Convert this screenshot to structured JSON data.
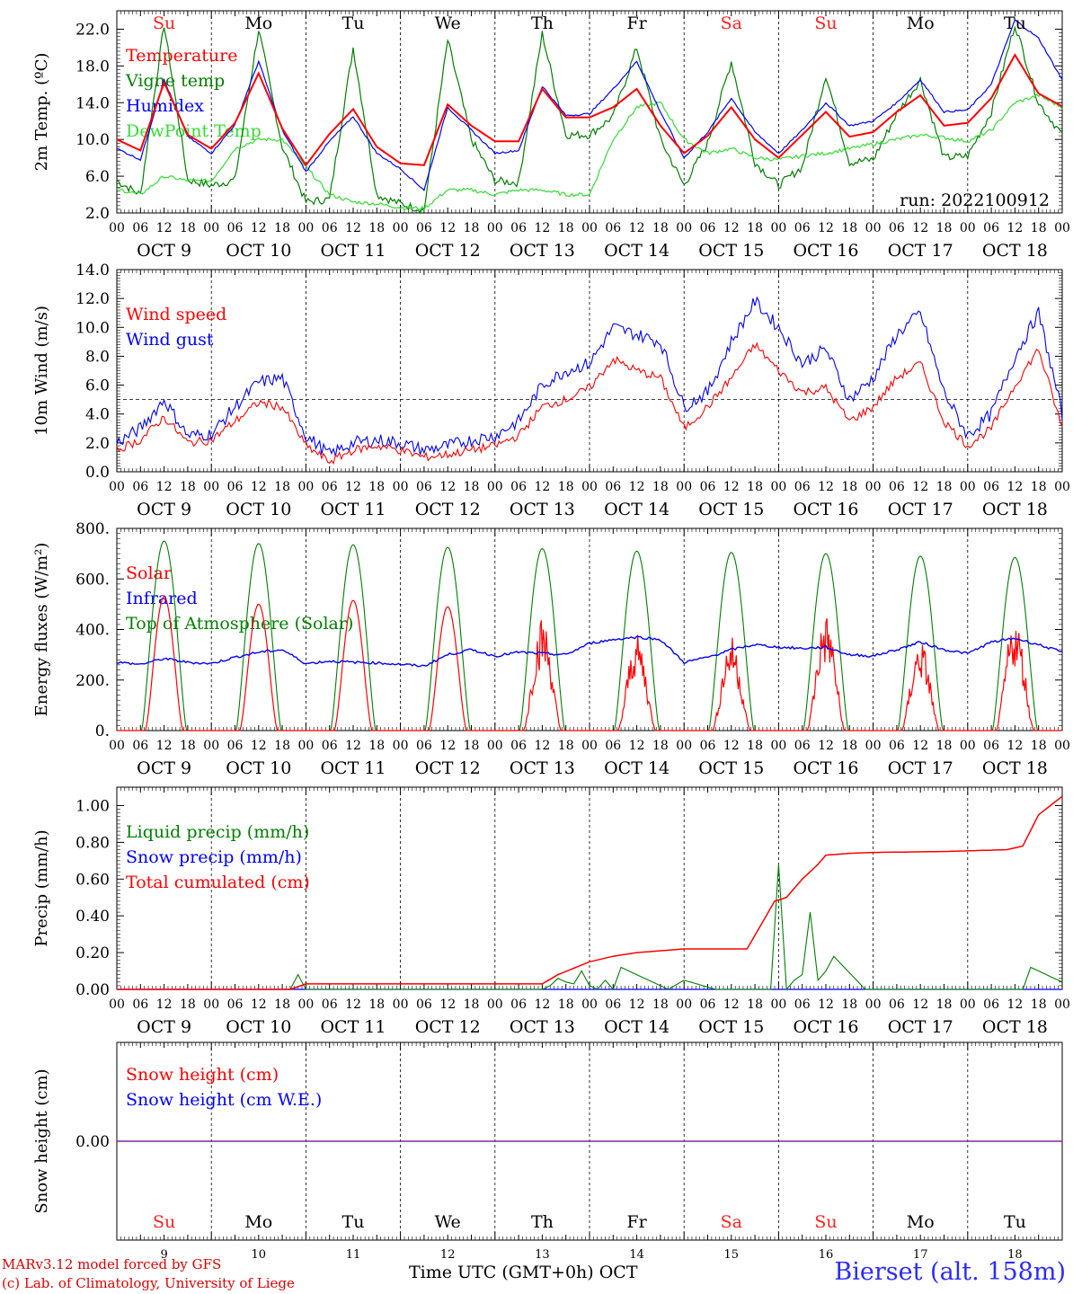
{
  "footer": {
    "credit_line1": "MARv3.12 model forced by GFS",
    "credit_line2": "(c) Lab. of Climatology, University of Liege",
    "x_title": "Time UTC (GMT+0h) OCT",
    "station": "Bierset (alt. 158m)"
  },
  "axis": {
    "hour_ticks": [
      "00",
      "06",
      "12",
      "18"
    ],
    "final_hour": "00",
    "date_labels": [
      "OCT  9",
      "OCT 10",
      "OCT 11",
      "OCT 12",
      "OCT 13",
      "OCT 14",
      "OCT 15",
      "OCT 16",
      "OCT 17",
      "OCT 18"
    ],
    "weekdays": [
      "Su",
      "Mo",
      "Tu",
      "We",
      "Th",
      "Fr",
      "Sa",
      "Su",
      "Mo",
      "Tu"
    ],
    "weekend_color": "#ff2020",
    "weekday_color": "#000000",
    "day_numbers": [
      "9",
      "10",
      "11",
      "12",
      "13",
      "14",
      "15",
      "16",
      "17",
      "18"
    ]
  },
  "chart_data": [
    {
      "type": "line",
      "ylabel": "2m Temp. (ºC)",
      "ylim": [
        2.0,
        24.0
      ],
      "yticks": [
        "2.0",
        "6.0",
        "10.0",
        "14.0",
        "18.0",
        "22.0"
      ],
      "note": "run: 2022100912",
      "x_unit": "hours since OCT 9 00 UTC",
      "series": [
        {
          "name": "Temperature",
          "color": "#ff0000",
          "x": [
            0,
            6,
            12,
            18,
            24,
            30,
            36,
            42,
            48,
            54,
            60,
            66,
            72,
            78,
            84,
            90,
            96,
            102,
            108,
            114,
            120,
            126,
            132,
            138,
            144,
            150,
            156,
            162,
            168,
            174,
            180,
            186,
            192,
            198,
            204,
            210,
            216,
            222,
            228,
            234,
            240
          ],
          "values": [
            10.0,
            8.8,
            16.2,
            10.5,
            9.0,
            11.8,
            17.2,
            11.2,
            7.2,
            10.6,
            13.3,
            9.2,
            7.4,
            7.2,
            13.8,
            11.5,
            9.8,
            9.8,
            15.5,
            12.4,
            12.4,
            13.5,
            15.5,
            11.5,
            8.5,
            10.4,
            13.5,
            10.0,
            8.0,
            10.5,
            13.0,
            10.3,
            10.8,
            13.0,
            14.8,
            11.5,
            11.8,
            14.5,
            19.2,
            15.0,
            13.6
          ]
        },
        {
          "name": "Vigne temp",
          "color": "#008000",
          "x": [
            0,
            6,
            12,
            18,
            24,
            30,
            36,
            42,
            48,
            54,
            60,
            66,
            72,
            78,
            84,
            90,
            96,
            102,
            108,
            114,
            120,
            126,
            132,
            138,
            144,
            150,
            156,
            162,
            168,
            174,
            180,
            186,
            192,
            198,
            204,
            210,
            216,
            222,
            228,
            234,
            240
          ],
          "values": [
            5.5,
            4.0,
            22.5,
            5.6,
            5.0,
            5.6,
            22.0,
            9.2,
            3.2,
            3.5,
            20.0,
            4.0,
            3.0,
            2.3,
            20.8,
            10.0,
            5.5,
            5.3,
            21.5,
            10.5,
            10.5,
            12.5,
            20.0,
            10.0,
            5.0,
            9.6,
            18.5,
            7.5,
            5.0,
            7.0,
            17.0,
            7.5,
            7.8,
            12.8,
            16.5,
            8.0,
            8.2,
            13.0,
            22.5,
            14.0,
            10.5
          ]
        },
        {
          "name": "Humidex",
          "color": "#0000ff",
          "x": [
            0,
            6,
            12,
            18,
            24,
            30,
            36,
            42,
            48,
            54,
            60,
            66,
            72,
            78,
            84,
            90,
            96,
            102,
            108,
            114,
            120,
            126,
            132,
            138,
            144,
            150,
            156,
            162,
            168,
            174,
            180,
            186,
            192,
            198,
            204,
            210,
            216,
            222,
            228,
            234,
            240
          ],
          "values": [
            9.0,
            7.8,
            16.5,
            10.3,
            8.5,
            11.6,
            18.5,
            11.0,
            6.5,
            9.8,
            12.5,
            8.5,
            6.8,
            4.5,
            13.5,
            11.0,
            8.5,
            8.8,
            15.8,
            12.6,
            12.8,
            15.5,
            18.5,
            13.0,
            8.0,
            10.8,
            14.5,
            10.8,
            8.5,
            11.0,
            14.0,
            11.5,
            12.0,
            14.0,
            16.5,
            13.0,
            13.2,
            16.0,
            23.0,
            21.0,
            16.5
          ]
        },
        {
          "name": "DewPoint Temp",
          "color": "#33dd33",
          "x": [
            0,
            6,
            12,
            18,
            24,
            30,
            36,
            42,
            48,
            54,
            60,
            66,
            72,
            78,
            84,
            90,
            96,
            102,
            108,
            114,
            120,
            126,
            132,
            138,
            144,
            150,
            156,
            162,
            168,
            174,
            180,
            186,
            192,
            198,
            204,
            210,
            216,
            222,
            228,
            234,
            240
          ],
          "values": [
            4.6,
            4.0,
            6.0,
            5.5,
            5.5,
            9.0,
            10.0,
            10.0,
            7.0,
            4.0,
            3.2,
            3.0,
            2.6,
            2.5,
            4.5,
            4.5,
            4.0,
            4.5,
            4.5,
            4.0,
            4.0,
            10.0,
            13.5,
            14.0,
            10.0,
            8.5,
            9.0,
            8.0,
            7.8,
            8.2,
            8.5,
            9.0,
            9.5,
            10.0,
            10.5,
            10.2,
            9.8,
            11.0,
            14.0,
            14.8,
            13.5
          ]
        }
      ]
    },
    {
      "type": "line",
      "ylabel": "10m Wind (m/s)",
      "ylim": [
        0.0,
        14.0
      ],
      "yticks": [
        "0.0",
        "2.0",
        "4.0",
        "6.0",
        "8.0",
        "10.0",
        "12.0",
        "14.0"
      ],
      "reference_line": 5.0,
      "series": [
        {
          "name": "Wind speed",
          "color": "#ff0000",
          "x": [
            0,
            6,
            12,
            18,
            24,
            30,
            36,
            42,
            48,
            54,
            60,
            66,
            72,
            78,
            84,
            90,
            96,
            102,
            108,
            114,
            120,
            126,
            132,
            138,
            144,
            150,
            156,
            162,
            168,
            174,
            180,
            186,
            192,
            198,
            204,
            210,
            216,
            222,
            228,
            234,
            240
          ],
          "values": [
            1.5,
            2.2,
            3.8,
            2.0,
            2.2,
            3.5,
            4.8,
            4.5,
            1.8,
            0.7,
            1.5,
            1.8,
            1.5,
            1.0,
            1.2,
            1.5,
            1.8,
            2.5,
            4.5,
            5.0,
            5.8,
            7.8,
            7.0,
            6.5,
            3.0,
            4.5,
            6.5,
            8.8,
            7.0,
            5.5,
            5.8,
            3.5,
            4.5,
            6.5,
            7.5,
            3.5,
            1.8,
            3.0,
            6.0,
            8.5,
            3.0
          ]
        },
        {
          "name": "Wind gust",
          "color": "#0000ff",
          "x": [
            0,
            6,
            12,
            18,
            24,
            30,
            36,
            42,
            48,
            54,
            60,
            66,
            72,
            78,
            84,
            90,
            96,
            102,
            108,
            114,
            120,
            126,
            132,
            138,
            144,
            150,
            156,
            162,
            168,
            174,
            180,
            186,
            192,
            198,
            204,
            210,
            216,
            222,
            228,
            234,
            240
          ],
          "values": [
            2.0,
            3.0,
            5.0,
            2.5,
            2.6,
            4.5,
            6.2,
            6.5,
            2.5,
            1.2,
            2.0,
            2.2,
            2.0,
            1.5,
            1.8,
            2.2,
            2.5,
            3.5,
            6.0,
            7.0,
            7.5,
            10.0,
            9.5,
            9.0,
            4.5,
            5.5,
            9.0,
            11.8,
            10.0,
            7.5,
            8.5,
            5.0,
            6.5,
            9.5,
            11.0,
            5.5,
            2.5,
            4.0,
            8.0,
            11.0,
            4.0
          ]
        }
      ]
    },
    {
      "type": "line",
      "ylabel": "Energy fluxes (W/m²)",
      "ylim": [
        0,
        800
      ],
      "yticks": [
        "0.",
        "200.",
        "400.",
        "600.",
        "800."
      ],
      "series": [
        {
          "name": "Solar",
          "color": "#ff0000",
          "daily_peak": [
            530,
            500,
            515,
            490,
            450,
            380,
            375,
            465,
            360,
            450
          ]
        },
        {
          "name": "Infrared",
          "color": "#0000ff",
          "x": [
            0,
            6,
            12,
            18,
            24,
            30,
            36,
            42,
            48,
            54,
            60,
            66,
            72,
            78,
            84,
            90,
            96,
            102,
            108,
            114,
            120,
            126,
            132,
            138,
            144,
            150,
            156,
            162,
            168,
            174,
            180,
            186,
            192,
            198,
            204,
            210,
            216,
            222,
            228,
            234,
            240
          ],
          "values": [
            270,
            262,
            285,
            270,
            265,
            290,
            310,
            320,
            265,
            275,
            270,
            268,
            262,
            255,
            300,
            320,
            295,
            310,
            305,
            300,
            345,
            360,
            370,
            360,
            270,
            290,
            320,
            340,
            330,
            325,
            330,
            300,
            295,
            320,
            350,
            320,
            305,
            350,
            365,
            340,
            310
          ]
        },
        {
          "name": "Top of Atmosphere (Solar)",
          "color": "#008000",
          "daily_peak": [
            750,
            740,
            735,
            725,
            720,
            710,
            705,
            700,
            690,
            685
          ]
        }
      ]
    },
    {
      "type": "line",
      "ylabel": "Precip (mm/h)",
      "ylim": [
        0.0,
        1.1
      ],
      "yticks": [
        "0.00",
        "0.20",
        "0.40",
        "0.60",
        "0.80",
        "1.00"
      ],
      "series": [
        {
          "name": "Liquid precip (mm/h)",
          "color": "#008000",
          "x": [
            0,
            44,
            46,
            48,
            108,
            110,
            112,
            114,
            116,
            118,
            120,
            122,
            124,
            126,
            128,
            140,
            144,
            152,
            166,
            168,
            170,
            172,
            174,
            176,
            178,
            180,
            182,
            190,
            230,
            232,
            234,
            236,
            238,
            240
          ],
          "values": [
            0,
            0,
            0.08,
            0,
            0,
            0.02,
            0.06,
            0.04,
            0.03,
            0.1,
            0.02,
            0,
            0.05,
            0,
            0.12,
            0,
            0.05,
            0,
            0,
            0.68,
            0,
            0.05,
            0.08,
            0.42,
            0.05,
            0.1,
            0.18,
            0,
            0,
            0.12,
            0.1,
            0.08,
            0.06,
            0.04
          ]
        },
        {
          "name": "Snow precip (mm/h)",
          "color": "#0000ff",
          "x": [
            0,
            240
          ],
          "values": [
            0,
            0
          ]
        },
        {
          "name": "Total cumulated (cm)",
          "color": "#ff0000",
          "x": [
            0,
            44,
            48,
            100,
            108,
            112,
            120,
            126,
            132,
            138,
            144,
            160,
            167,
            170,
            174,
            178,
            180,
            186,
            192,
            210,
            226,
            230,
            234,
            240
          ],
          "values": [
            0,
            0,
            0.03,
            0.03,
            0.03,
            0.08,
            0.15,
            0.18,
            0.2,
            0.21,
            0.22,
            0.22,
            0.48,
            0.5,
            0.6,
            0.68,
            0.73,
            0.74,
            0.745,
            0.75,
            0.76,
            0.78,
            0.95,
            1.05
          ]
        }
      ]
    },
    {
      "type": "line",
      "ylabel": "Snow height (cm)",
      "yticks": [
        "0.00"
      ],
      "series": [
        {
          "name": "Snow height (cm)",
          "color": "#ff0000",
          "x": [
            0,
            240
          ],
          "values": [
            0,
            0
          ]
        },
        {
          "name": "Snow height (cm W.E.)",
          "color": "#0000ff",
          "x": [
            0,
            240
          ],
          "values": [
            0,
            0
          ]
        }
      ]
    }
  ]
}
